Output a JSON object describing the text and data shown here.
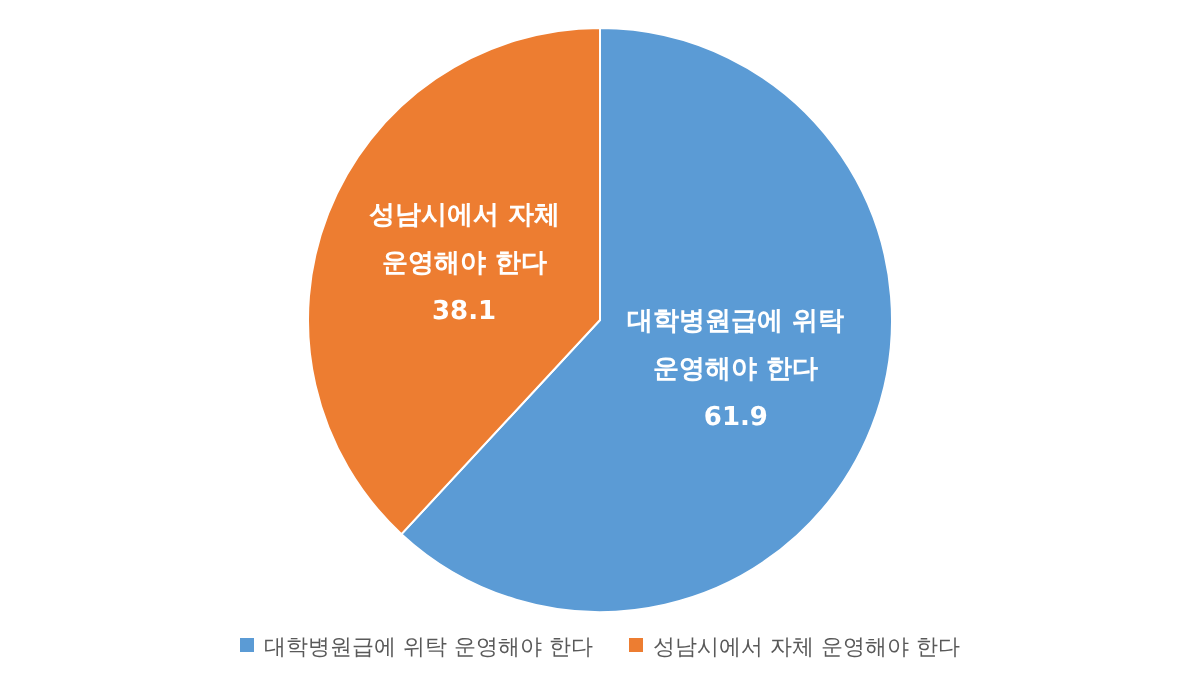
{
  "chart_data": {
    "type": "pie",
    "categories": [
      "대학병원급에 위탁 운영해야 한다",
      "성남시에서 자체 운영해야 한다"
    ],
    "values": [
      61.9,
      38.1
    ],
    "colors": [
      "#5b9bd5",
      "#ed7d31"
    ],
    "data_labels": true,
    "legend": "bottom"
  }
}
